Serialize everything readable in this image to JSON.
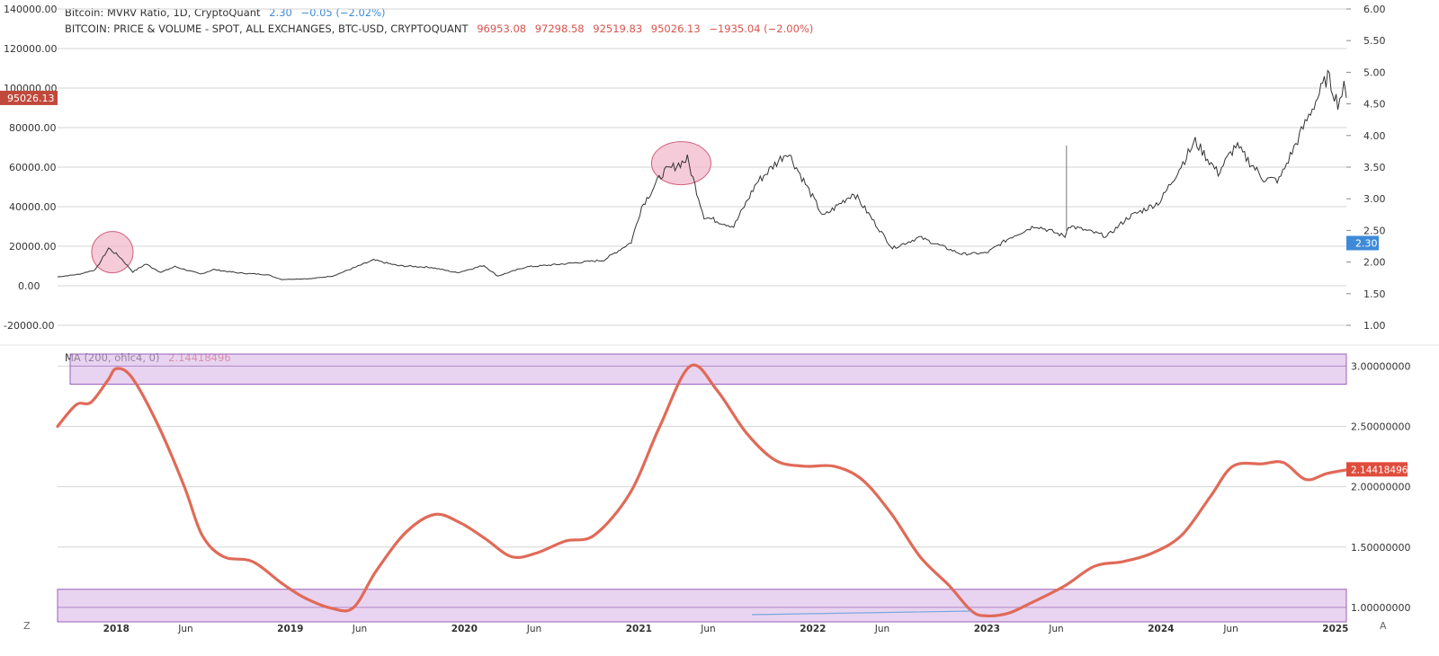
{
  "colors": {
    "background": "#ffffff",
    "grid": "#d6d6d6",
    "price_line": "#333333",
    "mvrv_ma_line": "#e06a58",
    "band_fill": "#d9b8e6",
    "band_stroke": "#9b5fb8",
    "circle_fill": "#f2b9cc",
    "circle_stroke": "#d0607a",
    "price_tag": "#c0493c",
    "mvrv_tag": "#3e8ad8",
    "ma_tag": "#e04c3c"
  },
  "legend": {
    "mvrv_title": "Bitcoin: MVRV Ratio, 1D, CryptoQuant",
    "mvrv_value": "2.30",
    "mvrv_change": "−0.05 (−2.02%)",
    "price_title": "BITCOIN: PRICE & VOLUME - SPOT, ALL EXCHANGES, BTC-USD, CRYPTOQUANT",
    "price_open": "96953.08",
    "price_high": "97298.58",
    "price_low": "92519.83",
    "price_close": "95026.13",
    "price_change": "−1935.04 (−2.00%)",
    "ma_title": "MA (200, ohlc4, 0)",
    "ma_value": "2.14418496"
  },
  "corner": {
    "left": "Z",
    "right": "A"
  },
  "chart_data": [
    {
      "type": "line",
      "title": "BITCOIN: PRICE & VOLUME - SPOT, ALL EXCHANGES, BTC-USD, CRYPTOQUANT",
      "xlabel": "",
      "ylabel": "",
      "xlim": [
        "2017-09-01",
        "2025-01-25"
      ],
      "ylim_left": [
        -20000,
        140000
      ],
      "left_ticks": [
        "140000.00",
        "120000.00",
        "100000.00",
        "80000.00",
        "60000.00",
        "40000.00",
        "20000.00",
        "0.00",
        "-20000.00"
      ],
      "right_ticks": [
        "6.00",
        "5.50",
        "5.00",
        "4.50",
        "4.00",
        "3.50",
        "3.00",
        "2.50",
        "2.00",
        "1.50",
        "1.00"
      ],
      "current_price_label": "95026.13",
      "current_mvrv_label": "2.30",
      "grid": true,
      "series": [
        {
          "values": [
            {
              "x": "2017-09-01",
              "y": 4500
            },
            {
              "x": "2017-10-15",
              "y": 5800
            },
            {
              "x": "2017-11-20",
              "y": 8200
            },
            {
              "x": "2017-12-17",
              "y": 19000
            },
            {
              "x": "2018-01-10",
              "y": 14500
            },
            {
              "x": "2018-02-06",
              "y": 7000
            },
            {
              "x": "2018-03-05",
              "y": 11000
            },
            {
              "x": "2018-04-06",
              "y": 6800
            },
            {
              "x": "2018-05-05",
              "y": 9700
            },
            {
              "x": "2018-06-28",
              "y": 5900
            },
            {
              "x": "2018-07-25",
              "y": 8200
            },
            {
              "x": "2018-09-15",
              "y": 6500
            },
            {
              "x": "2018-11-15",
              "y": 5600
            },
            {
              "x": "2018-12-15",
              "y": 3200
            },
            {
              "x": "2019-02-15",
              "y": 3600
            },
            {
              "x": "2019-04-02",
              "y": 5000
            },
            {
              "x": "2019-06-26",
              "y": 13000
            },
            {
              "x": "2019-08-15",
              "y": 10200
            },
            {
              "x": "2019-10-25",
              "y": 9300
            },
            {
              "x": "2019-12-18",
              "y": 6600
            },
            {
              "x": "2020-02-12",
              "y": 10300
            },
            {
              "x": "2020-03-12",
              "y": 4900
            },
            {
              "x": "2020-05-10",
              "y": 9500
            },
            {
              "x": "2020-07-27",
              "y": 11000
            },
            {
              "x": "2020-10-21",
              "y": 13000
            },
            {
              "x": "2020-12-17",
              "y": 22000
            },
            {
              "x": "2021-01-08",
              "y": 40000
            },
            {
              "x": "2021-02-21",
              "y": 57000
            },
            {
              "x": "2021-04-14",
              "y": 64000
            },
            {
              "x": "2021-05-19",
              "y": 35000
            },
            {
              "x": "2021-07-20",
              "y": 30000
            },
            {
              "x": "2021-09-06",
              "y": 52000
            },
            {
              "x": "2021-11-10",
              "y": 68000
            },
            {
              "x": "2022-01-24",
              "y": 35000
            },
            {
              "x": "2022-03-29",
              "y": 47000
            },
            {
              "x": "2022-06-18",
              "y": 19000
            },
            {
              "x": "2022-08-14",
              "y": 24500
            },
            {
              "x": "2022-11-10",
              "y": 16000
            },
            {
              "x": "2023-01-01",
              "y": 16600
            },
            {
              "x": "2023-02-21",
              "y": 24500
            },
            {
              "x": "2023-04-14",
              "y": 30500
            },
            {
              "x": "2023-06-15",
              "y": 25000
            },
            {
              "x": "2023-06-22",
              "y": 30500
            },
            {
              "x": "2023-09-11",
              "y": 25000
            },
            {
              "x": "2023-10-25",
              "y": 34500
            },
            {
              "x": "2023-12-31",
              "y": 42500
            },
            {
              "x": "2024-03-14",
              "y": 73000
            },
            {
              "x": "2024-05-01",
              "y": 57000
            },
            {
              "x": "2024-06-07",
              "y": 71000
            },
            {
              "x": "2024-08-05",
              "y": 54000
            },
            {
              "x": "2024-09-06",
              "y": 53500
            },
            {
              "x": "2024-11-11",
              "y": 88000
            },
            {
              "x": "2024-12-17",
              "y": 106000
            },
            {
              "x": "2025-01-07",
              "y": 92500
            },
            {
              "x": "2025-01-20",
              "y": 100000
            },
            {
              "x": "2025-01-25",
              "y": 95026
            }
          ]
        }
      ],
      "highlight_ellipses": [
        {
          "x": "2017-12-25",
          "y": 17000,
          "note": ""
        },
        {
          "x": "2021-04-01",
          "y": 62000,
          "note": ""
        }
      ]
    },
    {
      "type": "line",
      "title": "MA (200, ohlc4, 0)",
      "xlabel": "",
      "ylabel": "",
      "xlim": [
        "2017-09-01",
        "2025-01-25"
      ],
      "ylim": [
        0.88,
        3.1
      ],
      "right_ticks": [
        "3.00000000",
        "2.50000000",
        "2.00000000",
        "1.50000000",
        "1.00000000"
      ],
      "current_value_label": "2.14418496",
      "bands": [
        {
          "from": 2.85,
          "to": 3.15,
          "midline": 3.0
        },
        {
          "from": 0.88,
          "to": 1.15,
          "midline": 1.0
        }
      ],
      "x_ticks": [
        "2018",
        "Jun",
        "2019",
        "Jun",
        "2020",
        "Jun",
        "2021",
        "Jun",
        "2022",
        "Jun",
        "2023",
        "Jun",
        "2024",
        "Jun",
        "2025"
      ],
      "series": [
        {
          "values": [
            {
              "x": "2017-09-01",
              "y": 2.5
            },
            {
              "x": "2017-10-10",
              "y": 2.68
            },
            {
              "x": "2017-11-10",
              "y": 2.7
            },
            {
              "x": "2017-12-15",
              "y": 2.88
            },
            {
              "x": "2018-01-03",
              "y": 2.98
            },
            {
              "x": "2018-02-05",
              "y": 2.9
            },
            {
              "x": "2018-04-01",
              "y": 2.5
            },
            {
              "x": "2018-05-25",
              "y": 2.0
            },
            {
              "x": "2018-07-01",
              "y": 1.6
            },
            {
              "x": "2018-08-15",
              "y": 1.42
            },
            {
              "x": "2018-10-15",
              "y": 1.38
            },
            {
              "x": "2018-12-15",
              "y": 1.2
            },
            {
              "x": "2019-02-01",
              "y": 1.08
            },
            {
              "x": "2019-04-01",
              "y": 0.99
            },
            {
              "x": "2019-05-15",
              "y": 1.0
            },
            {
              "x": "2019-07-01",
              "y": 1.3
            },
            {
              "x": "2019-09-01",
              "y": 1.62
            },
            {
              "x": "2019-11-01",
              "y": 1.77
            },
            {
              "x": "2019-12-25",
              "y": 1.7
            },
            {
              "x": "2020-02-15",
              "y": 1.57
            },
            {
              "x": "2020-04-10",
              "y": 1.42
            },
            {
              "x": "2020-06-01",
              "y": 1.45
            },
            {
              "x": "2020-08-01",
              "y": 1.55
            },
            {
              "x": "2020-10-01",
              "y": 1.6
            },
            {
              "x": "2020-12-15",
              "y": 1.95
            },
            {
              "x": "2021-02-15",
              "y": 2.5
            },
            {
              "x": "2021-04-20",
              "y": 3.0
            },
            {
              "x": "2021-06-15",
              "y": 2.8
            },
            {
              "x": "2021-08-15",
              "y": 2.45
            },
            {
              "x": "2021-10-15",
              "y": 2.22
            },
            {
              "x": "2021-12-15",
              "y": 2.17
            },
            {
              "x": "2022-02-15",
              "y": 2.17
            },
            {
              "x": "2022-04-15",
              "y": 2.06
            },
            {
              "x": "2022-06-15",
              "y": 1.78
            },
            {
              "x": "2022-08-15",
              "y": 1.42
            },
            {
              "x": "2022-10-15",
              "y": 1.18
            },
            {
              "x": "2022-12-01",
              "y": 0.97
            },
            {
              "x": "2023-01-01",
              "y": 0.93
            },
            {
              "x": "2023-02-15",
              "y": 0.95
            },
            {
              "x": "2023-04-01",
              "y": 1.03
            },
            {
              "x": "2023-06-15",
              "y": 1.18
            },
            {
              "x": "2023-08-15",
              "y": 1.34
            },
            {
              "x": "2023-10-15",
              "y": 1.38
            },
            {
              "x": "2023-12-15",
              "y": 1.45
            },
            {
              "x": "2024-02-15",
              "y": 1.6
            },
            {
              "x": "2024-04-15",
              "y": 1.92
            },
            {
              "x": "2024-06-01",
              "y": 2.17
            },
            {
              "x": "2024-08-01",
              "y": 2.19
            },
            {
              "x": "2024-09-15",
              "y": 2.2
            },
            {
              "x": "2024-11-01",
              "y": 2.06
            },
            {
              "x": "2024-12-15",
              "y": 2.11
            },
            {
              "x": "2025-01-25",
              "y": 2.14
            }
          ]
        }
      ]
    }
  ]
}
